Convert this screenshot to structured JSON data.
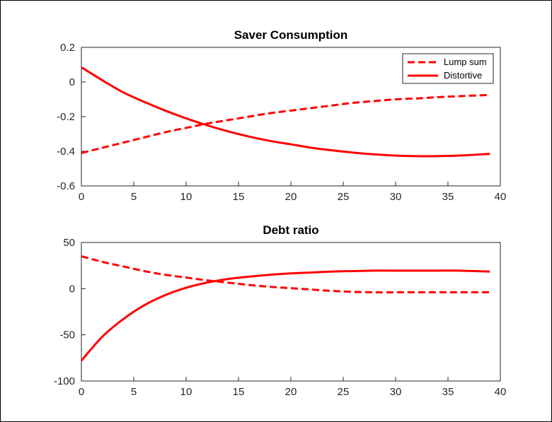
{
  "chart_data": [
    {
      "type": "line",
      "title": "Saver Consumption",
      "xlim": [
        0,
        40
      ],
      "ylim": [
        -0.6,
        0.2
      ],
      "xticks": [
        0,
        5,
        10,
        15,
        20,
        25,
        30,
        35,
        40
      ],
      "yticks": [
        0.2,
        0,
        -0.2,
        -0.4,
        -0.6
      ],
      "xtick_labels": [
        "0",
        "5",
        "10",
        "15",
        "20",
        "25",
        "30",
        "35",
        "40"
      ],
      "ytick_labels": [
        "0.2",
        "0",
        "-0.2",
        "-0.4",
        "-0.6"
      ],
      "grid": false,
      "legend": {
        "location": "top-right",
        "entries": [
          "Lump sum",
          "Distortive"
        ]
      },
      "x": [
        0,
        2,
        4,
        6,
        8,
        10,
        12,
        14,
        16,
        18,
        20,
        22,
        24,
        26,
        28,
        30,
        32,
        34,
        36,
        39
      ],
      "series": [
        {
          "name": "Lump sum",
          "style": "dashed",
          "color": "#ff0000",
          "values": [
            -0.41,
            -0.38,
            -0.35,
            -0.32,
            -0.29,
            -0.265,
            -0.24,
            -0.22,
            -0.2,
            -0.18,
            -0.165,
            -0.15,
            -0.135,
            -0.12,
            -0.11,
            -0.1,
            -0.095,
            -0.088,
            -0.082,
            -0.075
          ]
        },
        {
          "name": "Distortive",
          "style": "solid",
          "color": "#ff0000",
          "values": [
            0.085,
            0.01,
            -0.06,
            -0.115,
            -0.165,
            -0.21,
            -0.25,
            -0.285,
            -0.315,
            -0.34,
            -0.36,
            -0.38,
            -0.395,
            -0.408,
            -0.418,
            -0.425,
            -0.428,
            -0.428,
            -0.425,
            -0.415
          ]
        }
      ]
    },
    {
      "type": "line",
      "title": "Debt ratio",
      "xlim": [
        0,
        40
      ],
      "ylim": [
        -100,
        50
      ],
      "xticks": [
        0,
        5,
        10,
        15,
        20,
        25,
        30,
        35,
        40
      ],
      "yticks": [
        50,
        0,
        -50,
        -100
      ],
      "xtick_labels": [
        "0",
        "5",
        "10",
        "15",
        "20",
        "25",
        "30",
        "35",
        "40"
      ],
      "ytick_labels": [
        "50",
        "0",
        "-50",
        "-100"
      ],
      "grid": false,
      "x": [
        0,
        2,
        4,
        6,
        8,
        10,
        12,
        14,
        16,
        18,
        20,
        22,
        24,
        26,
        28,
        30,
        32,
        34,
        36,
        39
      ],
      "series": [
        {
          "style": "dashed",
          "color": "#ff0000",
          "values": [
            35,
            29,
            24,
            19,
            15,
            12,
            9,
            6.5,
            4,
            2,
            0.5,
            -1,
            -2.5,
            -3.5,
            -4,
            -4,
            -4,
            -4,
            -4,
            -4
          ]
        },
        {
          "style": "solid",
          "color": "#ff0000",
          "values": [
            -78,
            -52,
            -33,
            -18,
            -7,
            1,
            6.5,
            10.5,
            13,
            15,
            16.5,
            17.5,
            18.5,
            19,
            19.5,
            19.5,
            19.5,
            19.5,
            19.5,
            18.5
          ]
        }
      ]
    }
  ]
}
